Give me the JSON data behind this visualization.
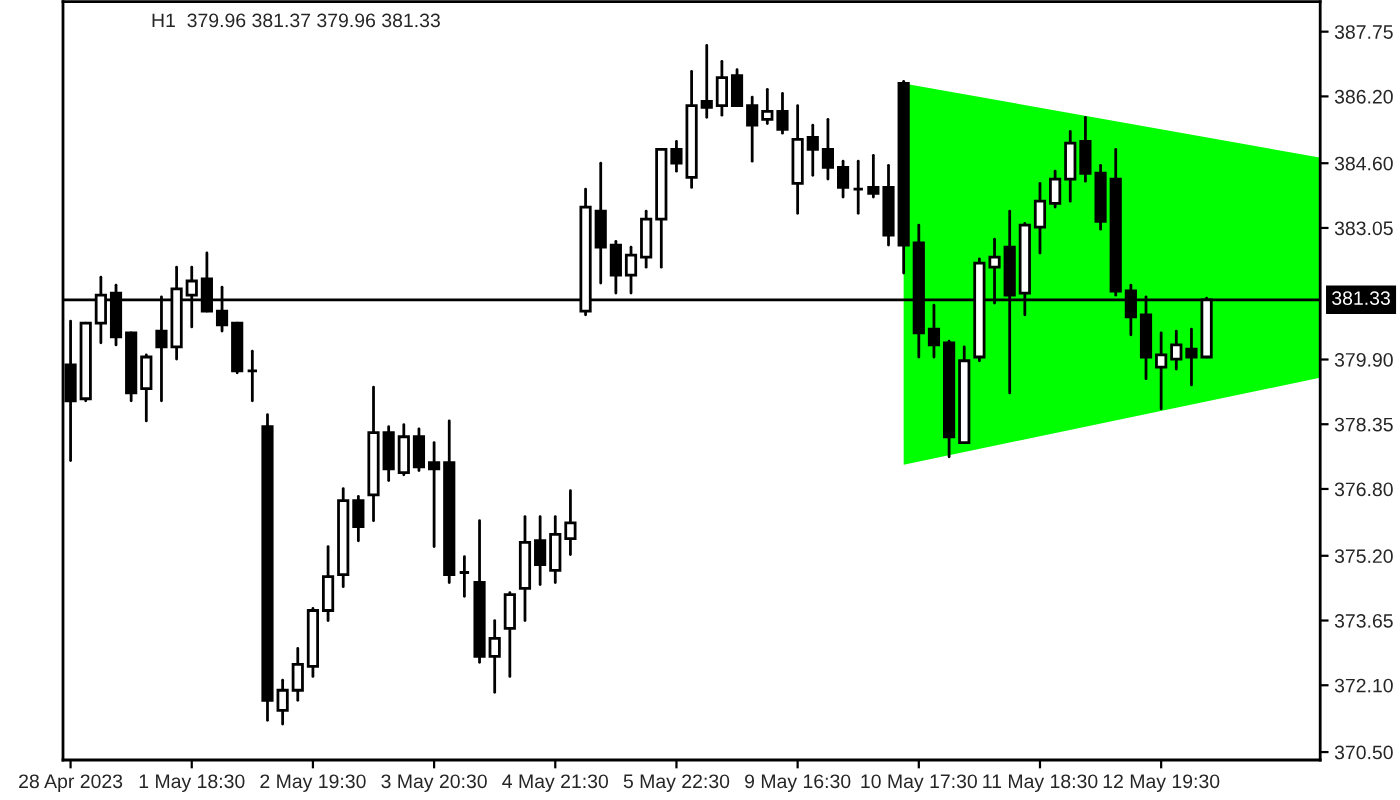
{
  "chart_data": {
    "type": "candlestick",
    "title": "H1  379.96 381.37 379.96 381.33",
    "categories": [
      "28 Apr 2023",
      null,
      null,
      null,
      null,
      null,
      null,
      null,
      "1 May 18:30",
      null,
      null,
      null,
      null,
      null,
      null,
      null,
      "2 May 19:30",
      null,
      null,
      null,
      null,
      null,
      null,
      null,
      "3 May 20:30",
      null,
      null,
      null,
      null,
      null,
      null,
      null,
      "4 May 21:30",
      null,
      null,
      null,
      null,
      null,
      null,
      null,
      "5 May 22:30",
      null,
      null,
      null,
      null,
      null,
      null,
      null,
      "9 May 16:30",
      null,
      null,
      null,
      null,
      null,
      null,
      null,
      "10 May 17:30",
      null,
      null,
      null,
      null,
      null,
      null,
      null,
      "11 May 18:30",
      null,
      null,
      null,
      null,
      null,
      null,
      null,
      "12 May 19:30",
      null,
      null,
      null,
      null,
      null,
      null,
      null,
      null,
      null,
      null
    ],
    "ohlc": [
      [
        379.77,
        380.82,
        377.48,
        378.91
      ],
      [
        378.96,
        380.77,
        378.91,
        380.77
      ],
      [
        380.77,
        381.87,
        380.3,
        381.44
      ],
      [
        381.49,
        381.68,
        380.25,
        380.44
      ],
      [
        380.54,
        380.54,
        378.91,
        379.1
      ],
      [
        379.2,
        380.01,
        378.43,
        379.96
      ],
      [
        380.58,
        381.4,
        378.91,
        380.2
      ],
      [
        380.2,
        382.11,
        379.91,
        381.59
      ],
      [
        381.44,
        382.11,
        380.68,
        381.78
      ],
      [
        381.83,
        382.45,
        381.06,
        381.06
      ],
      [
        381.06,
        381.63,
        380.58,
        380.73
      ],
      [
        380.77,
        380.77,
        379.58,
        379.63
      ],
      [
        379.63,
        380.1,
        378.91,
        379.63
      ],
      [
        378.29,
        378.58,
        371.26,
        371.74
      ],
      [
        371.5,
        372.22,
        371.17,
        371.98
      ],
      [
        371.98,
        372.98,
        371.74,
        372.6
      ],
      [
        372.55,
        373.94,
        372.31,
        373.89
      ],
      [
        373.89,
        375.42,
        373.65,
        374.7
      ],
      [
        374.75,
        376.81,
        374.46,
        376.52
      ],
      [
        376.52,
        376.62,
        375.56,
        375.9
      ],
      [
        376.66,
        379.24,
        376.04,
        378.15
      ],
      [
        378.15,
        378.29,
        377.0,
        377.28
      ],
      [
        377.19,
        378.34,
        377.14,
        378.05
      ],
      [
        378.05,
        378.24,
        377.24,
        377.33
      ],
      [
        377.43,
        377.91,
        375.42,
        377.28
      ],
      [
        377.43,
        378.43,
        374.56,
        374.75
      ],
      [
        374.8,
        375.18,
        374.23,
        374.8
      ],
      [
        374.56,
        376.04,
        372.65,
        372.79
      ],
      [
        372.79,
        373.65,
        371.93,
        373.22
      ],
      [
        373.46,
        374.32,
        372.31,
        374.27
      ],
      [
        374.42,
        376.14,
        373.65,
        375.52
      ],
      [
        375.56,
        376.14,
        374.51,
        374.99
      ],
      [
        374.85,
        376.14,
        374.56,
        375.71
      ],
      [
        375.61,
        376.76,
        375.23,
        375.99
      ],
      [
        381.06,
        383.98,
        380.97,
        383.55
      ],
      [
        383.45,
        384.6,
        381.73,
        382.59
      ],
      [
        382.64,
        382.73,
        381.49,
        381.92
      ],
      [
        381.92,
        382.59,
        381.49,
        382.4
      ],
      [
        382.35,
        383.45,
        382.11,
        383.26
      ],
      [
        383.26,
        384.93,
        382.11,
        384.93
      ],
      [
        384.93,
        385.12,
        384.41,
        384.6
      ],
      [
        384.26,
        386.8,
        384.02,
        385.98
      ],
      [
        386.08,
        387.42,
        385.7,
        385.94
      ],
      [
        385.98,
        387.04,
        385.75,
        386.65
      ],
      [
        386.7,
        386.84,
        385.98,
        385.98
      ],
      [
        385.98,
        386.18,
        384.65,
        385.51
      ],
      [
        385.65,
        386.37,
        385.55,
        385.84
      ],
      [
        385.84,
        386.27,
        385.32,
        385.41
      ],
      [
        384.12,
        385.98,
        383.4,
        385.17
      ],
      [
        385.22,
        385.51,
        384.31,
        384.93
      ],
      [
        384.93,
        385.65,
        384.22,
        384.5
      ],
      [
        384.5,
        384.65,
        383.79,
        384.02
      ],
      [
        383.98,
        384.65,
        383.4,
        383.98
      ],
      [
        384.02,
        384.79,
        383.79,
        383.88
      ],
      [
        384.02,
        384.55,
        382.64,
        382.88
      ],
      [
        386.51,
        386.56,
        381.97,
        382.64
      ],
      [
        382.69,
        383.12,
        379.96,
        380.54
      ],
      [
        380.63,
        381.2,
        379.96,
        380.25
      ],
      [
        380.3,
        380.34,
        377.57,
        378.05
      ],
      [
        377.91,
        380.2,
        377.91,
        379.87
      ],
      [
        379.96,
        382.31,
        379.87,
        382.21
      ],
      [
        382.11,
        382.78,
        381.25,
        382.35
      ],
      [
        382.59,
        383.45,
        379.1,
        381.44
      ],
      [
        381.49,
        383.16,
        380.97,
        383.12
      ],
      [
        383.07,
        384.12,
        382.45,
        383.69
      ],
      [
        383.64,
        384.41,
        383.55,
        384.22
      ],
      [
        384.22,
        385.36,
        383.69,
        385.08
      ],
      [
        385.12,
        385.7,
        384.17,
        384.36
      ],
      [
        384.36,
        384.55,
        383.02,
        383.21
      ],
      [
        384.22,
        384.93,
        381.44,
        381.54
      ],
      [
        381.54,
        381.68,
        380.49,
        380.92
      ],
      [
        380.97,
        381.4,
        379.44,
        379.96
      ],
      [
        379.72,
        380.54,
        378.72,
        380.01
      ],
      [
        379.91,
        380.58,
        379.67,
        380.25
      ],
      [
        380.15,
        380.63,
        379.29,
        379.96
      ],
      [
        379.96,
        381.37,
        379.96,
        381.33
      ],
      null,
      null,
      null,
      null,
      null,
      null,
      null
    ],
    "ylim": [
      370.31,
      388.47
    ],
    "yticks": [
      {
        "value": 370.5,
        "label": "370.50"
      },
      {
        "value": 372.1,
        "label": "372.10"
      },
      {
        "value": 373.65,
        "label": "373.65"
      },
      {
        "value": 375.2,
        "label": "375.20"
      },
      {
        "value": 376.8,
        "label": "376.80"
      },
      {
        "value": 378.35,
        "label": "378.35"
      },
      {
        "value": 379.9,
        "label": "379.90"
      },
      {
        "value": 383.05,
        "label": "383.05"
      },
      {
        "value": 384.6,
        "label": "384.60"
      },
      {
        "value": 386.2,
        "label": "386.20"
      },
      {
        "value": 387.75,
        "label": "387.75"
      }
    ],
    "ref_lines": [
      {
        "axis": "y",
        "value": 381.33,
        "label": "381.33",
        "color": "#000000"
      }
    ]
  }
}
